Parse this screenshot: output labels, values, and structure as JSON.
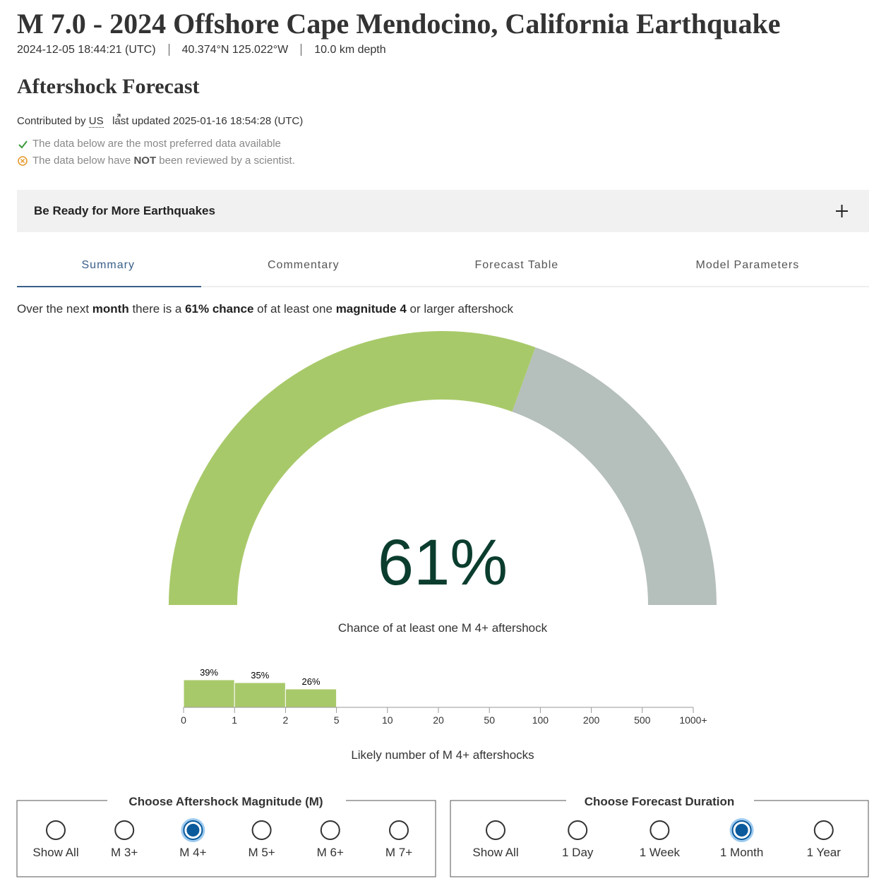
{
  "header": {
    "title": "M 7.0 - 2024 Offshore Cape Mendocino, California Earthquake",
    "time": "2024-12-05 18:44:21 (UTC)",
    "location": "40.374°N 125.022°W",
    "depth": "10.0 km depth"
  },
  "section_title": "Aftershock Forecast",
  "contributed": {
    "prefix": "Contributed by",
    "source": "US",
    "updated": "last updated 2025-01-16 18:54:28 (UTC)"
  },
  "notes": {
    "preferred": "The data below are the most preferred data available",
    "reviewed": [
      "The data below have ",
      "NOT",
      " been reviewed by a scientist."
    ]
  },
  "accordion": "Be Ready for More Earthquakes",
  "tabs": [
    "Summary",
    "Commentary",
    "Forecast Table",
    "Model Parameters"
  ],
  "active_tab": 0,
  "sentence": [
    "Over the next ",
    "month",
    " there is a ",
    "61% chance",
    " of at least one ",
    "magnitude 4",
    " or larger aftershock"
  ],
  "chart_data": [
    {
      "type": "gauge",
      "values": [
        61
      ],
      "value_labels": [
        "61%"
      ],
      "ylim": [
        0,
        100
      ],
      "colors": [
        "#a8c96a",
        "#b5bfbc"
      ],
      "caption": "Chance of at least one M 4+ aftershock"
    },
    {
      "type": "histogram",
      "bins": [
        0,
        1,
        2,
        5
      ],
      "values": [
        39,
        35,
        26
      ],
      "value_labels": [
        "39%",
        "35%",
        "26%"
      ],
      "color": "#a8c96a",
      "ylim": [
        0,
        100
      ],
      "xticks": [
        0,
        1,
        2,
        5,
        10,
        20,
        50,
        100,
        200,
        500,
        {
          "value": 1000,
          "label": "1000+"
        }
      ],
      "xlabel": "Likely number of M 4+ aftershocks"
    }
  ],
  "controls": [
    {
      "legend": "Choose Aftershock Magnitude (M)",
      "options": [
        "Show All",
        "M 3+",
        "M 4+",
        "M 5+",
        "M 6+",
        "M 7+"
      ],
      "selected": 2
    },
    {
      "legend": "Choose Forecast Duration",
      "options": [
        "Show All",
        "1 Day",
        "1 Week",
        "1 Month",
        "1 Year"
      ],
      "selected": 3
    }
  ]
}
